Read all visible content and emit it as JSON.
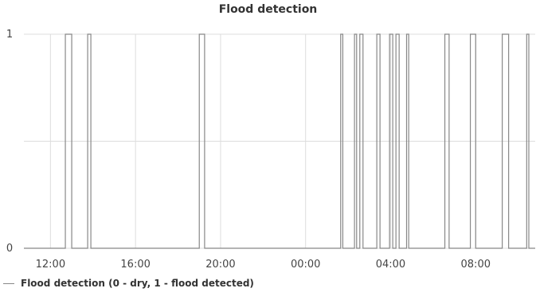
{
  "chart_data": {
    "type": "line",
    "step": true,
    "title": "Flood detection",
    "xlabel": "",
    "ylabel": "",
    "x_ticks": [
      "12:00",
      "16:00",
      "20:00",
      "00:00",
      "04:00",
      "08:00"
    ],
    "x_tick_hours": [
      12,
      16,
      20,
      24,
      28,
      32
    ],
    "xlim_hours": [
      10.75,
      34.8
    ],
    "ylim": [
      0,
      1
    ],
    "y_ticks": [
      0,
      1
    ],
    "grid": true,
    "legend_position": "bottom-left",
    "series": [
      {
        "name": "Flood detection (0 - dry, 1 - flood detected)",
        "color": "#888888",
        "x_hours": [
          10.75,
          12.7,
          12.7,
          13.0,
          13.0,
          13.75,
          13.75,
          13.9,
          13.9,
          19.0,
          19.0,
          19.25,
          19.25,
          25.65,
          25.65,
          25.75,
          25.75,
          26.3,
          26.3,
          26.4,
          26.4,
          26.55,
          26.55,
          26.7,
          26.7,
          27.35,
          27.35,
          27.5,
          27.5,
          27.95,
          27.95,
          28.1,
          28.1,
          28.25,
          28.25,
          28.4,
          28.4,
          28.75,
          28.75,
          28.85,
          28.85,
          30.55,
          30.55,
          30.75,
          30.75,
          31.75,
          31.75,
          32.0,
          32.0,
          33.25,
          33.25,
          33.55,
          33.55,
          34.4,
          34.4,
          34.5,
          34.5,
          34.8
        ],
        "values": [
          0,
          0,
          1,
          1,
          0,
          0,
          1,
          1,
          0,
          0,
          1,
          1,
          0,
          0,
          1,
          1,
          0,
          0,
          1,
          1,
          0,
          0,
          1,
          1,
          0,
          0,
          1,
          1,
          0,
          0,
          1,
          1,
          0,
          0,
          1,
          1,
          0,
          0,
          1,
          1,
          0,
          0,
          1,
          1,
          0,
          0,
          1,
          1,
          0,
          0,
          1,
          1,
          0,
          0,
          1,
          1,
          0,
          0
        ]
      }
    ]
  }
}
